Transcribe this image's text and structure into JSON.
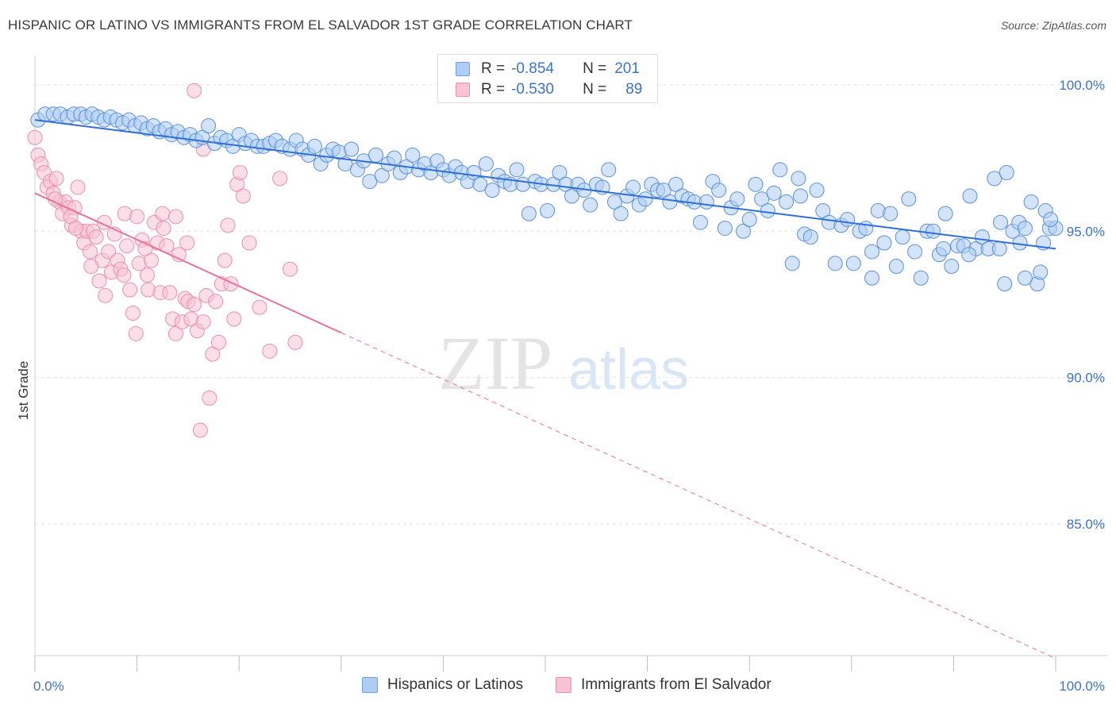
{
  "title": "HISPANIC OR LATINO VS IMMIGRANTS FROM EL SALVADOR 1ST GRADE CORRELATION CHART",
  "source": "Source: ZipAtlas.com",
  "watermark": {
    "zip": "ZIP",
    "atlas": "atlas"
  },
  "legend_top": {
    "rows": [
      {
        "r_label": "R =",
        "r_value": "-0.854",
        "n_label": "N =",
        "n_value": "201",
        "color": "#aecdf5",
        "border": "#6f9fe0"
      },
      {
        "r_label": "R =",
        "r_value": "-0.530",
        "n_label": "N =",
        "n_value": "89",
        "color": "#f8c3d3",
        "border": "#ec8fac"
      }
    ]
  },
  "colors": {
    "blue_fill": "#aecdf5",
    "blue_stroke": "#5b90da",
    "blue_line": "#2e6fd6",
    "pink_fill": "#f8c3d3",
    "pink_stroke": "#ec8fac",
    "pink_line": "#e8739a",
    "grid": "#e3e3e3",
    "tick_text": "#3b73c9"
  },
  "chart_data": {
    "type": "scatter",
    "title": "HISPANIC OR LATINO VS IMMIGRANTS FROM EL SALVADOR 1ST GRADE CORRELATION CHART",
    "xlabel": "",
    "ylabel": "1st Grade",
    "xlim": [
      0,
      100
    ],
    "ylim": [
      80.5,
      101.0
    ],
    "x_tick_labels": [
      "0.0%",
      "100.0%"
    ],
    "y_ticks": [
      85,
      90,
      95,
      100
    ],
    "y_tick_labels": [
      "85.0%",
      "90.0%",
      "95.0%",
      "100.0%"
    ],
    "grid": true,
    "legend_position": "bottom-center",
    "series": [
      {
        "name": "Hispanics or Latinos",
        "color": "#aecdf5",
        "trend": {
          "x": [
            0,
            100
          ],
          "y": [
            98.8,
            94.4
          ],
          "style": "solid"
        },
        "points": [
          [
            0.3,
            98.8
          ],
          [
            1.0,
            99.0
          ],
          [
            1.8,
            99.0
          ],
          [
            2.5,
            99.0
          ],
          [
            3.2,
            98.9
          ],
          [
            3.8,
            99.0
          ],
          [
            4.5,
            99.0
          ],
          [
            5.0,
            98.9
          ],
          [
            5.6,
            99.0
          ],
          [
            6.2,
            98.9
          ],
          [
            6.8,
            98.8
          ],
          [
            7.4,
            98.9
          ],
          [
            8.0,
            98.8
          ],
          [
            8.6,
            98.7
          ],
          [
            9.2,
            98.8
          ],
          [
            9.8,
            98.6
          ],
          [
            10.4,
            98.7
          ],
          [
            11.0,
            98.5
          ],
          [
            11.6,
            98.6
          ],
          [
            12.2,
            98.4
          ],
          [
            12.8,
            98.5
          ],
          [
            13.4,
            98.3
          ],
          [
            14.0,
            98.4
          ],
          [
            14.6,
            98.2
          ],
          [
            15.2,
            98.3
          ],
          [
            15.8,
            98.1
          ],
          [
            16.4,
            98.2
          ],
          [
            17.0,
            98.6
          ],
          [
            17.6,
            98.0
          ],
          [
            18.2,
            98.2
          ],
          [
            18.8,
            98.1
          ],
          [
            19.4,
            97.9
          ],
          [
            20.0,
            98.3
          ],
          [
            20.6,
            98.0
          ],
          [
            21.2,
            98.1
          ],
          [
            21.8,
            97.9
          ],
          [
            22.4,
            97.9
          ],
          [
            23.0,
            98.0
          ],
          [
            23.6,
            98.1
          ],
          [
            24.2,
            97.9
          ],
          [
            25.0,
            97.8
          ],
          [
            25.6,
            98.1
          ],
          [
            26.2,
            97.8
          ],
          [
            26.8,
            97.6
          ],
          [
            27.4,
            97.9
          ],
          [
            28.0,
            97.3
          ],
          [
            28.6,
            97.6
          ],
          [
            29.2,
            97.8
          ],
          [
            29.8,
            97.7
          ],
          [
            30.4,
            97.3
          ],
          [
            31.0,
            97.8
          ],
          [
            31.6,
            97.1
          ],
          [
            32.2,
            97.4
          ],
          [
            32.8,
            96.7
          ],
          [
            33.4,
            97.6
          ],
          [
            34.0,
            96.9
          ],
          [
            34.6,
            97.3
          ],
          [
            35.2,
            97.5
          ],
          [
            35.8,
            97.0
          ],
          [
            36.4,
            97.2
          ],
          [
            37.0,
            97.6
          ],
          [
            37.6,
            97.1
          ],
          [
            38.2,
            97.3
          ],
          [
            38.8,
            97.0
          ],
          [
            39.4,
            97.4
          ],
          [
            40.0,
            97.1
          ],
          [
            40.6,
            96.9
          ],
          [
            41.2,
            97.2
          ],
          [
            41.8,
            97.0
          ],
          [
            42.4,
            96.7
          ],
          [
            43.0,
            97.0
          ],
          [
            43.6,
            96.6
          ],
          [
            44.2,
            97.3
          ],
          [
            44.8,
            96.4
          ],
          [
            45.4,
            96.9
          ],
          [
            46.0,
            96.7
          ],
          [
            46.6,
            96.6
          ],
          [
            47.2,
            97.1
          ],
          [
            47.8,
            96.6
          ],
          [
            48.4,
            95.6
          ],
          [
            49.0,
            96.7
          ],
          [
            49.6,
            96.6
          ],
          [
            50.2,
            95.7
          ],
          [
            50.8,
            96.6
          ],
          [
            51.4,
            97.0
          ],
          [
            52.0,
            96.6
          ],
          [
            52.6,
            96.2
          ],
          [
            53.2,
            96.6
          ],
          [
            53.8,
            96.4
          ],
          [
            54.4,
            95.9
          ],
          [
            55.0,
            96.6
          ],
          [
            55.6,
            96.5
          ],
          [
            56.2,
            97.1
          ],
          [
            56.8,
            96.0
          ],
          [
            57.4,
            95.6
          ],
          [
            58.0,
            96.2
          ],
          [
            58.6,
            96.5
          ],
          [
            59.2,
            95.9
          ],
          [
            59.8,
            96.1
          ],
          [
            60.4,
            96.6
          ],
          [
            61.0,
            96.4
          ],
          [
            61.6,
            96.4
          ],
          [
            62.2,
            96.0
          ],
          [
            62.8,
            96.6
          ],
          [
            63.4,
            96.2
          ],
          [
            64.0,
            96.1
          ],
          [
            64.6,
            96.0
          ],
          [
            65.2,
            95.3
          ],
          [
            65.8,
            96.0
          ],
          [
            66.4,
            96.7
          ],
          [
            67.0,
            96.4
          ],
          [
            67.6,
            95.1
          ],
          [
            68.2,
            95.8
          ],
          [
            68.8,
            96.1
          ],
          [
            69.4,
            95.0
          ],
          [
            70.0,
            95.4
          ],
          [
            70.6,
            96.6
          ],
          [
            71.2,
            96.1
          ],
          [
            71.8,
            95.7
          ],
          [
            72.4,
            96.3
          ],
          [
            73.0,
            97.1
          ],
          [
            73.6,
            96.0
          ],
          [
            74.2,
            93.9
          ],
          [
            74.8,
            96.8
          ],
          [
            75.4,
            94.9
          ],
          [
            76.0,
            94.8
          ],
          [
            76.6,
            96.4
          ],
          [
            77.2,
            95.7
          ],
          [
            77.8,
            95.3
          ],
          [
            78.4,
            93.9
          ],
          [
            79.0,
            95.2
          ],
          [
            79.6,
            95.4
          ],
          [
            80.2,
            93.9
          ],
          [
            80.8,
            95.0
          ],
          [
            81.4,
            95.1
          ],
          [
            82.0,
            93.4
          ],
          [
            82.6,
            95.7
          ],
          [
            83.2,
            94.6
          ],
          [
            83.8,
            95.6
          ],
          [
            84.4,
            93.8
          ],
          [
            85.0,
            94.8
          ],
          [
            85.6,
            96.1
          ],
          [
            86.2,
            94.3
          ],
          [
            86.8,
            93.4
          ],
          [
            87.4,
            95.0
          ],
          [
            88.0,
            95.0
          ],
          [
            88.6,
            94.2
          ],
          [
            89.2,
            95.6
          ],
          [
            89.8,
            93.8
          ],
          [
            90.4,
            94.5
          ],
          [
            91.0,
            94.5
          ],
          [
            91.6,
            96.2
          ],
          [
            92.2,
            94.4
          ],
          [
            92.8,
            94.8
          ],
          [
            93.4,
            94.4
          ],
          [
            94.0,
            96.8
          ],
          [
            94.6,
            95.3
          ],
          [
            95.2,
            97.0
          ],
          [
            95.8,
            95.0
          ],
          [
            96.4,
            95.3
          ],
          [
            97.0,
            95.1
          ],
          [
            97.6,
            96.0
          ],
          [
            98.2,
            93.2
          ],
          [
            98.8,
            94.6
          ],
          [
            99.4,
            95.1
          ],
          [
            100.0,
            95.1
          ],
          [
            75.0,
            96.2
          ],
          [
            82.0,
            94.3
          ],
          [
            89.0,
            94.4
          ],
          [
            95.0,
            93.2
          ],
          [
            97.0,
            93.4
          ],
          [
            98.5,
            93.6
          ],
          [
            91.5,
            94.2
          ],
          [
            99.0,
            95.7
          ],
          [
            99.5,
            95.4
          ],
          [
            94.5,
            94.4
          ],
          [
            96.5,
            94.6
          ]
        ]
      },
      {
        "name": "Immigrants from El Salvador",
        "color": "#f8c3d3",
        "trend": {
          "x": [
            0,
            100
          ],
          "y": [
            96.3,
            80.4
          ],
          "style": "solid-then-dashed",
          "solid_until_x": 30.0
        },
        "points": [
          [
            0.0,
            98.2
          ],
          [
            0.3,
            97.6
          ],
          [
            0.6,
            97.3
          ],
          [
            0.9,
            97.0
          ],
          [
            1.2,
            96.5
          ],
          [
            1.5,
            96.7
          ],
          [
            1.8,
            96.3
          ],
          [
            2.1,
            96.8
          ],
          [
            2.4,
            96.0
          ],
          [
            2.7,
            95.6
          ],
          [
            3.0,
            96.0
          ],
          [
            3.3,
            95.8
          ],
          [
            3.6,
            95.2
          ],
          [
            3.9,
            95.8
          ],
          [
            4.2,
            96.5
          ],
          [
            4.5,
            95.0
          ],
          [
            4.8,
            94.6
          ],
          [
            5.1,
            95.0
          ],
          [
            5.4,
            94.3
          ],
          [
            5.7,
            95.0
          ],
          [
            6.0,
            94.8
          ],
          [
            6.3,
            93.3
          ],
          [
            6.6,
            94.0
          ],
          [
            6.9,
            92.8
          ],
          [
            7.2,
            94.3
          ],
          [
            7.5,
            93.6
          ],
          [
            7.8,
            94.9
          ],
          [
            8.1,
            94.0
          ],
          [
            8.4,
            93.7
          ],
          [
            8.7,
            93.5
          ],
          [
            9.0,
            94.5
          ],
          [
            9.3,
            93.0
          ],
          [
            9.6,
            92.2
          ],
          [
            9.9,
            91.5
          ],
          [
            10.2,
            93.9
          ],
          [
            10.5,
            94.7
          ],
          [
            10.8,
            94.4
          ],
          [
            11.1,
            93.0
          ],
          [
            11.4,
            94.0
          ],
          [
            11.7,
            95.3
          ],
          [
            12.0,
            94.6
          ],
          [
            12.3,
            92.9
          ],
          [
            12.6,
            95.1
          ],
          [
            12.9,
            94.5
          ],
          [
            13.2,
            92.9
          ],
          [
            13.5,
            92.0
          ],
          [
            13.8,
            91.5
          ],
          [
            14.1,
            94.2
          ],
          [
            14.4,
            91.9
          ],
          [
            14.7,
            92.7
          ],
          [
            15.0,
            92.6
          ],
          [
            15.3,
            92.0
          ],
          [
            15.6,
            92.5
          ],
          [
            15.9,
            91.6
          ],
          [
            16.2,
            88.2
          ],
          [
            16.5,
            91.9
          ],
          [
            16.8,
            92.8
          ],
          [
            17.1,
            89.3
          ],
          [
            17.4,
            90.8
          ],
          [
            17.7,
            92.6
          ],
          [
            18.0,
            91.2
          ],
          [
            18.3,
            93.2
          ],
          [
            18.6,
            94.0
          ],
          [
            18.9,
            95.2
          ],
          [
            19.2,
            93.2
          ],
          [
            19.5,
            92.0
          ],
          [
            19.8,
            96.6
          ],
          [
            20.1,
            97.0
          ],
          [
            20.4,
            96.2
          ],
          [
            21.0,
            94.6
          ],
          [
            22.0,
            92.4
          ],
          [
            23.0,
            90.9
          ],
          [
            24.0,
            96.8
          ],
          [
            25.0,
            93.7
          ],
          [
            25.5,
            91.2
          ],
          [
            2.0,
            96.1
          ],
          [
            3.5,
            95.5
          ],
          [
            4.0,
            95.1
          ],
          [
            5.5,
            93.8
          ],
          [
            6.8,
            95.3
          ],
          [
            8.8,
            95.6
          ],
          [
            10.0,
            95.5
          ],
          [
            11.0,
            93.5
          ],
          [
            12.5,
            95.6
          ],
          [
            13.8,
            95.5
          ],
          [
            15.6,
            99.8
          ],
          [
            14.9,
            94.6
          ],
          [
            16.5,
            97.8
          ]
        ]
      }
    ]
  },
  "bottom_legend": {
    "items": [
      {
        "label": "Hispanics or Latinos",
        "color": "#aecdf5",
        "border": "#6f9fe0"
      },
      {
        "label": "Immigrants from El Salvador",
        "color": "#f8c3d3",
        "border": "#ec8fac"
      }
    ]
  }
}
